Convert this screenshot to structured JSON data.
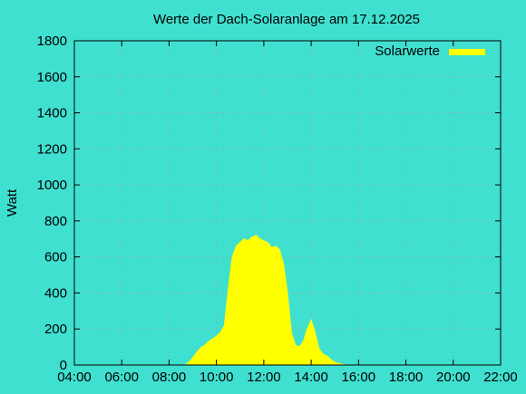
{
  "chart_data": {
    "type": "area",
    "title": "Werte der Dach-Solaranlage am 17.12.2025",
    "xlabel": "",
    "ylabel": "Watt",
    "xlim": [
      "04:00",
      "22:00"
    ],
    "ylim": [
      0,
      1800
    ],
    "x_ticks": [
      "04:00",
      "06:00",
      "08:00",
      "10:00",
      "12:00",
      "14:00",
      "16:00",
      "18:00",
      "20:00",
      "22:00"
    ],
    "y_ticks": [
      0,
      200,
      400,
      600,
      800,
      1000,
      1200,
      1400,
      1600,
      1800
    ],
    "grid": true,
    "legend_position": "top-right",
    "colors": {
      "background": "#40e0d0",
      "series": "#ffff00",
      "grid": "#a0a0a0",
      "axis": "#000000"
    },
    "series": [
      {
        "name": "Solarwerte",
        "x": [
          "08:40",
          "08:50",
          "09:00",
          "09:10",
          "09:20",
          "09:30",
          "09:40",
          "09:50",
          "10:00",
          "10:10",
          "10:20",
          "10:30",
          "10:40",
          "10:50",
          "11:00",
          "11:10",
          "11:20",
          "11:30",
          "11:40",
          "11:50",
          "12:00",
          "12:10",
          "12:20",
          "12:30",
          "12:40",
          "12:50",
          "13:00",
          "13:10",
          "13:20",
          "13:30",
          "13:40",
          "13:50",
          "14:00",
          "14:10",
          "14:20",
          "14:30",
          "14:40",
          "14:50",
          "15:00",
          "15:10",
          "15:20",
          "15:30",
          "15:40",
          "15:50",
          "16:00"
        ],
        "values": [
          0,
          15,
          40,
          70,
          95,
          110,
          130,
          145,
          160,
          180,
          220,
          420,
          600,
          660,
          680,
          700,
          690,
          710,
          720,
          700,
          690,
          680,
          650,
          660,
          640,
          560,
          400,
          180,
          110,
          100,
          130,
          200,
          250,
          180,
          90,
          60,
          50,
          30,
          15,
          8,
          3,
          0,
          0,
          0,
          0
        ]
      }
    ]
  }
}
